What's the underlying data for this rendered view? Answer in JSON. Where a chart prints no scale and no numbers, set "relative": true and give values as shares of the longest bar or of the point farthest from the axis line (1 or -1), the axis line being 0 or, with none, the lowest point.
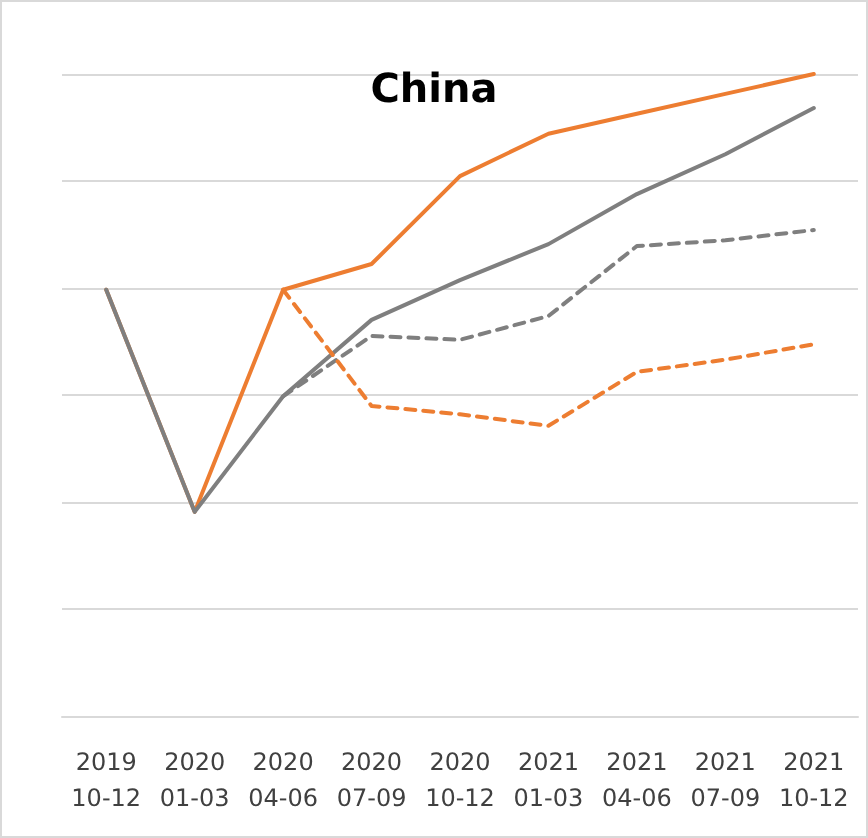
{
  "chart_data": {
    "type": "line",
    "title": "China",
    "relative": true,
    "grid": "y",
    "marker": "none",
    "categories": [
      "2019\n10-12",
      "2020\n01-03",
      "2020\n04-06",
      "2020\n07-09",
      "2020\n10-12",
      "2021\n01-03",
      "2021\n04-06",
      "2021\n07-09",
      "2021\n10-12"
    ],
    "series": [
      {
        "color": "#ed7d31",
        "line_style": "solid",
        "values": [
          0.664,
          0.318,
          0.664,
          0.704,
          0.841,
          0.907,
          0.938,
          0.969,
          1
        ]
      },
      {
        "color": "#7f7f7f",
        "line_style": "solid",
        "values": [
          0.664,
          0.318,
          0.498,
          0.617,
          0.679,
          0.735,
          0.813,
          0.875,
          0.947
        ]
      },
      {
        "color": "#7f7f7f",
        "line_style": "dashed",
        "values": [
          null,
          null,
          0.498,
          0.592,
          0.586,
          0.623,
          0.732,
          0.741,
          0.757
        ]
      },
      {
        "color": "#ed7d31",
        "line_style": "dashed",
        "values": [
          null,
          null,
          0.664,
          0.483,
          0.47,
          0.452,
          0.536,
          0.555,
          0.579
        ]
      }
    ]
  }
}
